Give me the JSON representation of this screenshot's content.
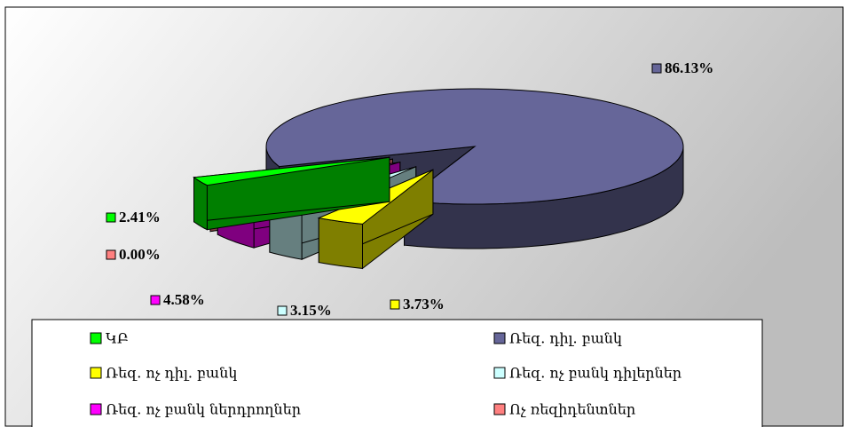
{
  "chart_data": {
    "type": "pie",
    "categories": [
      "ԿԲ",
      "Ռեզ. դիլ. բանկ",
      "Ռեզ. ոչ դիլ. բանկ",
      "Ռեզ. ոչ բանկ դիլերներ",
      "Ռեզ. ոչ բանկ ներդրողներ",
      "Ոչ ռեզիդենտներ"
    ],
    "values": [
      2.41,
      86.13,
      3.73,
      3.15,
      4.58,
      0.0
    ],
    "value_labels": [
      "2.41%",
      "86.13%",
      "3.73%",
      "3.15%",
      "4.58%",
      "0.00%"
    ],
    "colors": [
      "#00ff00",
      "#666699",
      "#ffff00",
      "#ccffff",
      "#ff00ff",
      "#ff8080"
    ]
  }
}
